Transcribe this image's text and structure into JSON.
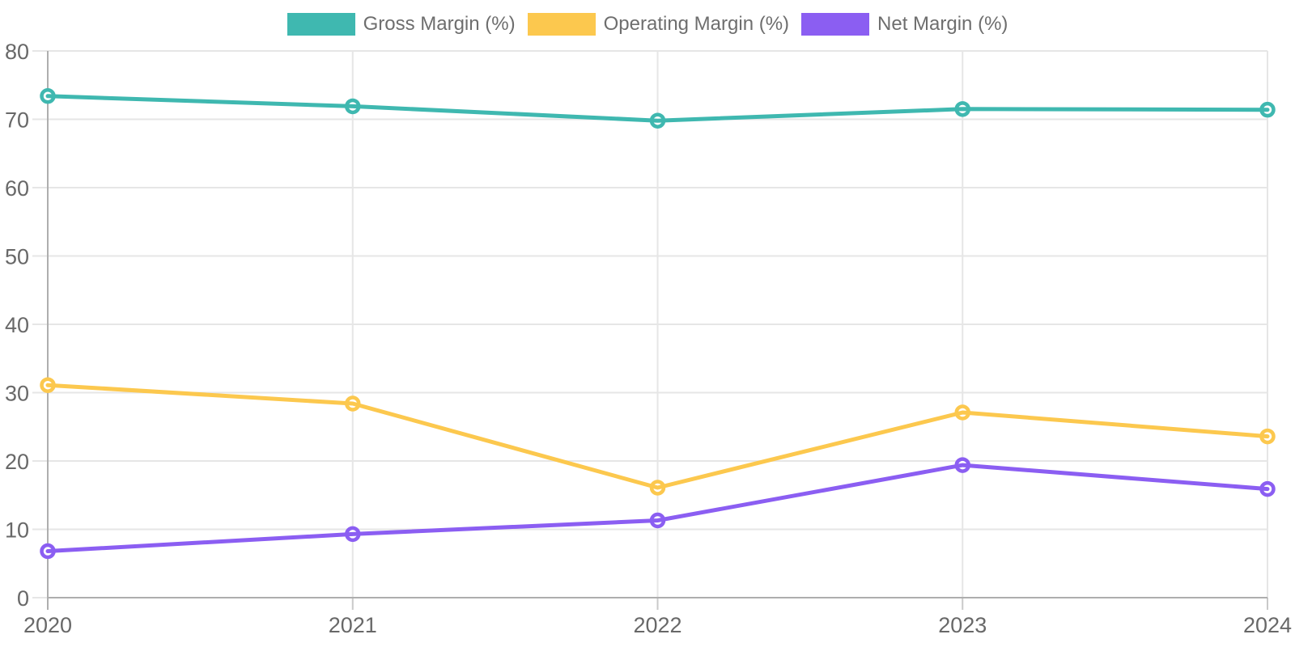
{
  "chart_data": {
    "type": "line",
    "title": "",
    "xlabel": "",
    "ylabel": "",
    "categories": [
      "2020",
      "2021",
      "2022",
      "2023",
      "2024"
    ],
    "series": [
      {
        "name": "Gross Margin (%)",
        "color": "#3fb8b0",
        "values": [
          73.4,
          71.9,
          69.8,
          71.5,
          71.4
        ]
      },
      {
        "name": "Operating Margin (%)",
        "color": "#fcc84e",
        "values": [
          31.1,
          28.4,
          16.1,
          27.1,
          23.6
        ]
      },
      {
        "name": "Net Margin (%)",
        "color": "#8b5ef2",
        "values": [
          6.8,
          9.3,
          11.3,
          19.4,
          15.9
        ]
      }
    ],
    "ylim": [
      0,
      80
    ],
    "yticks": [
      0,
      10,
      20,
      30,
      40,
      50,
      60,
      70,
      80
    ],
    "legend_position": "top",
    "grid": true,
    "marker": "circle-open"
  },
  "colors": {
    "background": "#ffffff",
    "grid_line": "#e6e6e6",
    "axis_line": "#aeaeae",
    "tick_mark": "#c9c9c9",
    "tick_text": "#686868",
    "legend_text": "#6e6e6e",
    "marker_fill": "#ffffff"
  }
}
